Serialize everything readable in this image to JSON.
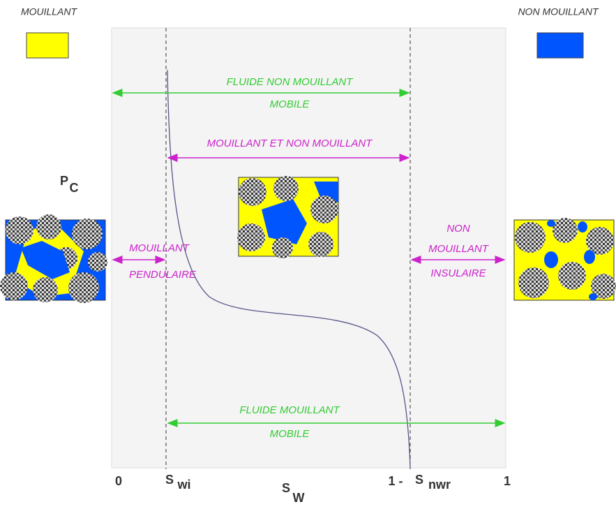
{
  "legend": {
    "wetting": "MOUILLANT",
    "non_wetting": "NON MOUILLANT"
  },
  "annotations": {
    "nonwetting_mobile": [
      "FLUIDE NON MOUILLANT",
      "MOBILE"
    ],
    "both_mobile": "MOUILLANT ET NON MOUILLANT",
    "pendular": [
      "MOUILLANT",
      "PENDULAIRE"
    ],
    "insular": [
      "NON",
      "MOUILLANT",
      "INSULAIRE"
    ],
    "wetting_mobile": [
      "FLUIDE MOUILLANT",
      "MOBILE"
    ]
  },
  "axes": {
    "y_label": "P",
    "y_sub": "C",
    "x_start": "0",
    "swi": "S",
    "swi_sub": "wi",
    "x_label": "S",
    "x_sub": "W",
    "one_minus": "1 -",
    "snwr": "S",
    "snwr_sub": "nwr",
    "x_end": "1"
  }
}
